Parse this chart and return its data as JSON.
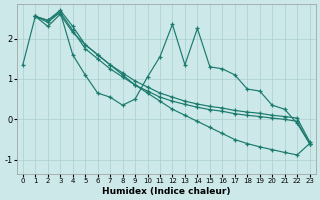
{
  "xlabel": "Humidex (Indice chaleur)",
  "bg_color": "#cce8e8",
  "line_color": "#1a7a6e",
  "grid_color": "#aacfcf",
  "ylim": [
    -1.35,
    2.85
  ],
  "xlim": [
    -0.5,
    23.5
  ],
  "yticks": [
    -1,
    0,
    1,
    2
  ],
  "xticks": [
    0,
    1,
    2,
    3,
    4,
    5,
    6,
    7,
    8,
    9,
    10,
    11,
    12,
    13,
    14,
    15,
    16,
    17,
    18,
    19,
    20,
    21,
    22,
    23
  ],
  "line_diagonal": {
    "x": [
      0,
      1,
      2,
      3,
      4,
      5,
      6,
      7,
      8,
      9,
      10,
      11,
      12,
      13,
      14,
      15,
      16,
      17,
      18,
      19,
      20,
      21,
      22,
      23
    ],
    "y": [
      1.35,
      2.55,
      2.3,
      2.6,
      2.15,
      1.85,
      1.6,
      1.35,
      1.1,
      0.85,
      0.65,
      0.45,
      0.25,
      0.1,
      -0.05,
      -0.2,
      -0.35,
      -0.5,
      -0.6,
      -0.68,
      -0.75,
      -0.82,
      -0.88,
      -0.6
    ]
  },
  "line_zigzag1": {
    "x": [
      1,
      2,
      3,
      4,
      5,
      6,
      7,
      8,
      9,
      10,
      11,
      12,
      13,
      14,
      15,
      16,
      17,
      18,
      19,
      20,
      21,
      22,
      23
    ],
    "y": [
      2.55,
      2.45,
      2.65,
      1.6,
      1.1,
      0.65,
      0.55,
      0.35,
      0.5,
      1.05,
      1.55,
      2.35,
      1.35,
      2.25,
      1.3,
      1.25,
      1.1,
      0.75,
      0.7,
      0.35,
      0.25,
      -0.1,
      -0.6
    ]
  },
  "line_top1": {
    "x": [
      1,
      2,
      3,
      4,
      5,
      6,
      7,
      8,
      9,
      10,
      11,
      12,
      13,
      14,
      15,
      16,
      17,
      18,
      19,
      20,
      21,
      22,
      23
    ],
    "y": [
      2.55,
      2.45,
      2.7,
      2.3,
      1.85,
      1.6,
      1.35,
      1.15,
      0.95,
      0.8,
      0.65,
      0.55,
      0.45,
      0.38,
      0.32,
      0.28,
      0.22,
      0.18,
      0.15,
      0.1,
      0.07,
      0.03,
      -0.55
    ]
  },
  "line_top2": {
    "x": [
      1,
      2,
      3,
      4,
      5,
      6,
      7,
      8,
      9,
      10,
      11,
      12,
      13,
      14,
      15,
      16,
      17,
      18,
      19,
      20,
      21,
      22,
      23
    ],
    "y": [
      2.55,
      2.4,
      2.65,
      2.2,
      1.75,
      1.5,
      1.25,
      1.05,
      0.85,
      0.7,
      0.55,
      0.45,
      0.37,
      0.3,
      0.24,
      0.2,
      0.14,
      0.1,
      0.07,
      0.03,
      0.0,
      -0.05,
      -0.6
    ]
  }
}
